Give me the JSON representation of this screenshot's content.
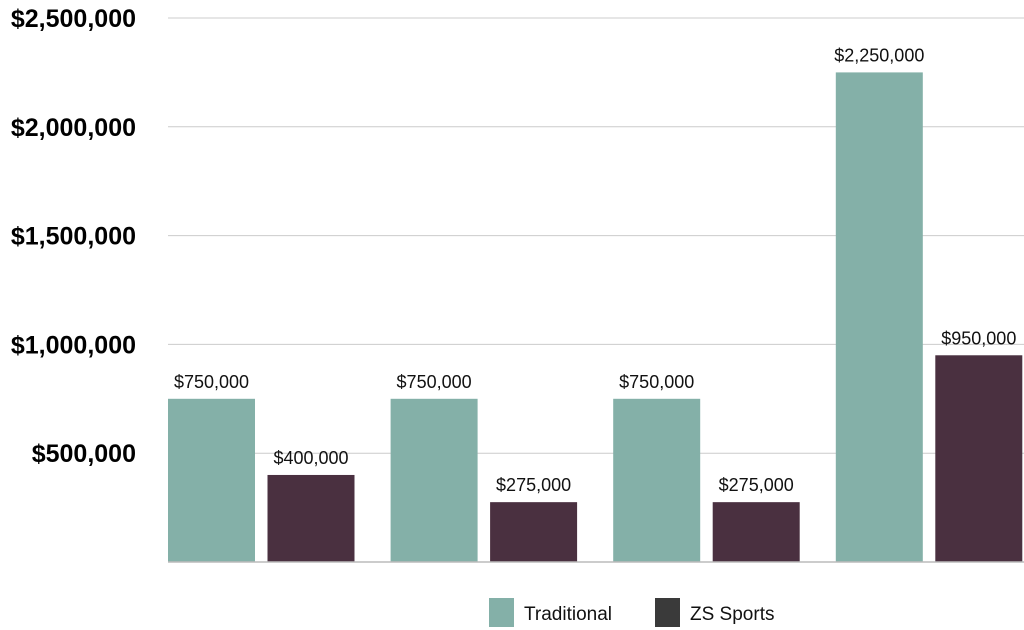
{
  "chart_data": {
    "type": "bar",
    "title": "",
    "xlabel": "",
    "ylabel": "",
    "categories": [
      "",
      "",
      "",
      ""
    ],
    "series": [
      {
        "name": "Traditional",
        "values": [
          750000,
          750000,
          750000,
          2250000
        ],
        "color": "#84b0a8"
      },
      {
        "name": "ZS Sports",
        "values": [
          400000,
          275000,
          275000,
          950000
        ],
        "color": "#4a3040"
      }
    ],
    "data_labels": [
      [
        "$750,000",
        "$750,000",
        "$750,000",
        "$2,250,000"
      ],
      [
        "$400,000",
        "$275,000",
        "$275,000",
        "$950,000"
      ]
    ],
    "ylim": [
      0,
      2500000
    ],
    "yticks": [
      500000,
      1000000,
      1500000,
      2000000,
      2500000
    ],
    "ytick_labels": [
      "$500,000",
      "$1,000,000",
      "$1,500,000",
      "$2,000,000",
      "$2,500,000"
    ],
    "grid": true,
    "legend_position": "bottom-center",
    "legend_swatch_colors": [
      "#84b0a8",
      "#3a3a3a"
    ]
  }
}
